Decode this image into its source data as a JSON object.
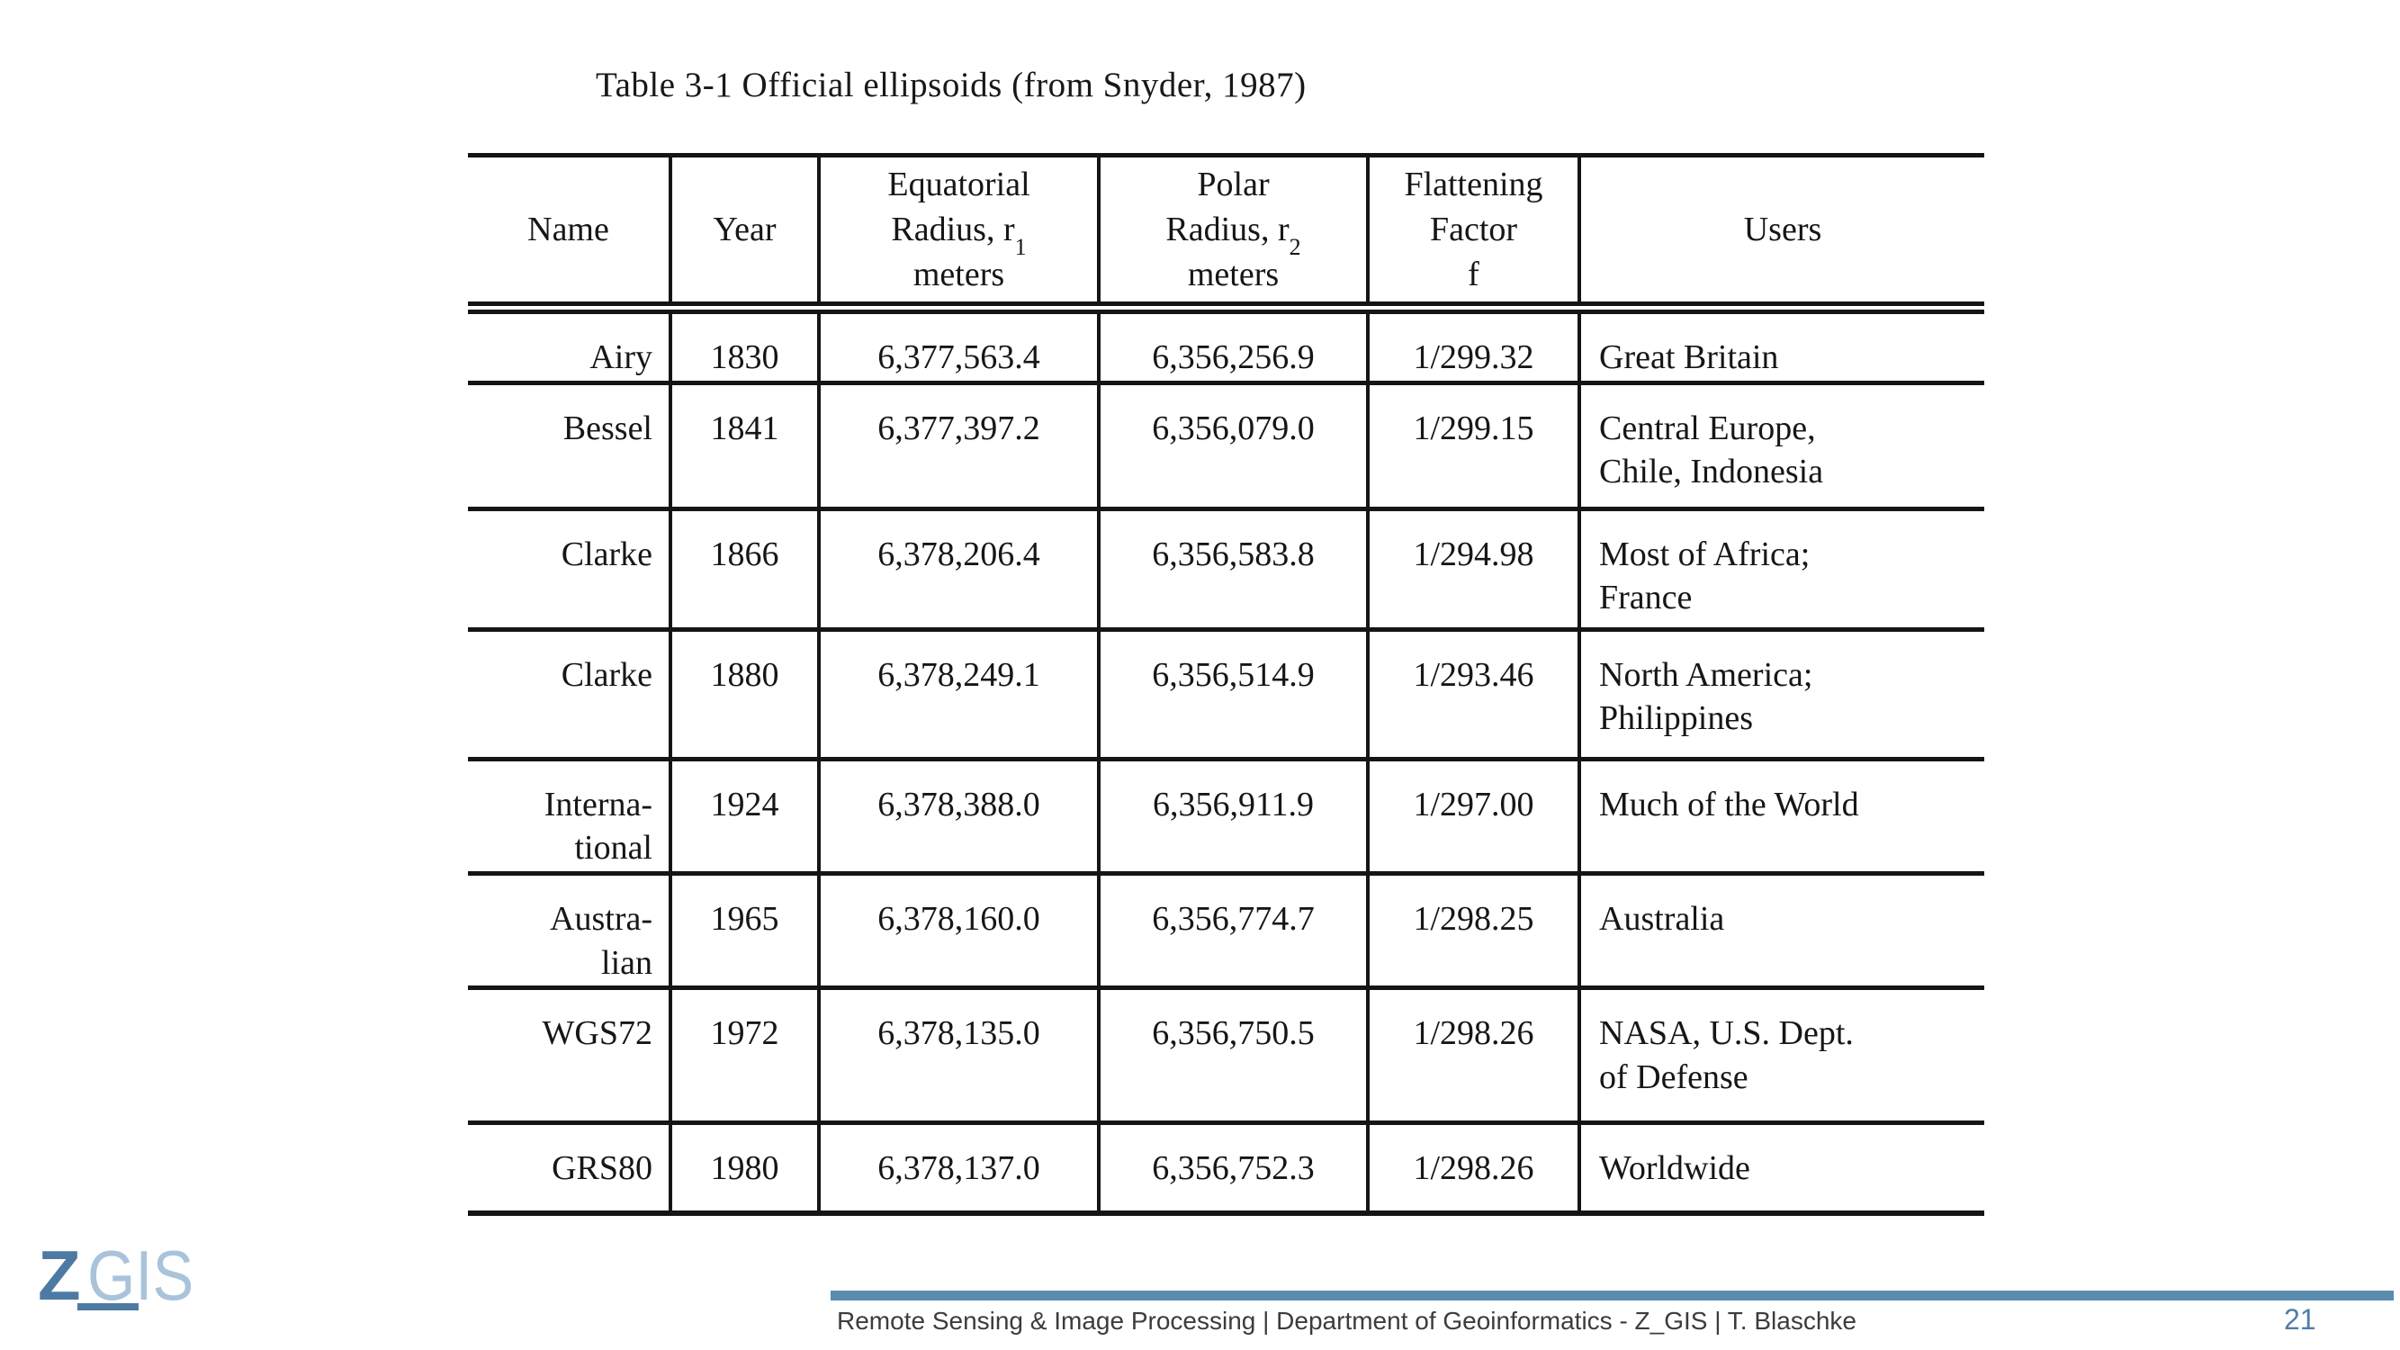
{
  "slide": {
    "title": "Table 3-1 Official ellipsoids (from Snyder, 1987)",
    "page_number": "21"
  },
  "logo": {
    "z": "Z",
    "gis": "GIS"
  },
  "footer": {
    "text": "Remote Sensing & Image Processing | Department of Geoinformatics - Z_GIS | T. Blaschke"
  },
  "colors": {
    "accent_dark": "#4d7aa3",
    "accent_light": "#a9c3da",
    "footer_bar": "#5a8cae",
    "page_number": "#4d7ea9",
    "footer_text": "#3c3c3c",
    "table_ink": "#151515"
  },
  "table": {
    "headers": {
      "name": "Name",
      "year": "Year",
      "equatorial": {
        "l1": "Equatorial",
        "l2": "Radius, r",
        "sub": "1",
        "l3": "meters"
      },
      "polar": {
        "l1": "Polar",
        "l2": "Radius, r",
        "sub": "2",
        "l3": "meters"
      },
      "flattening": {
        "l1": "Flattening",
        "l2": "Factor",
        "l3": "f"
      },
      "users": "Users"
    },
    "rows": [
      {
        "name": "Airy",
        "year": "1830",
        "equatorial": "6,377,563.4",
        "polar": "6,356,256.9",
        "flattening": "1/299.32",
        "users": "Great Britain"
      },
      {
        "name": "Bessel",
        "year": "1841",
        "equatorial": "6,377,397.2",
        "polar": "6,356,079.0",
        "flattening": "1/299.15",
        "users": "Central Europe,\nChile,  Indonesia"
      },
      {
        "name": "Clarke",
        "year": "1866",
        "equatorial": "6,378,206.4",
        "polar": "6,356,583.8",
        "flattening": "1/294.98",
        "users": "Most of Africa;\nFrance"
      },
      {
        "name": "Clarke",
        "year": "1880",
        "equatorial": "6,378,249.1",
        "polar": "6,356,514.9",
        "flattening": "1/293.46",
        "users": "North America;\nPhilippines"
      },
      {
        "name": "Interna-\ntional",
        "year": "1924",
        "equatorial": "6,378,388.0",
        "polar": "6,356,911.9",
        "flattening": "1/297.00",
        "users": "Much of the World"
      },
      {
        "name": "Austra-\nlian",
        "year": "1965",
        "equatorial": "6,378,160.0",
        "polar": "6,356,774.7",
        "flattening": "1/298.25",
        "users": "Australia"
      },
      {
        "name": "WGS72",
        "year": "1972",
        "equatorial": "6,378,135.0",
        "polar": "6,356,750.5",
        "flattening": "1/298.26",
        "users": "NASA, U.S. Dept.\nof Defense"
      },
      {
        "name": "GRS80",
        "year": "1980",
        "equatorial": "6,378,137.0",
        "polar": "6,356,752.3",
        "flattening": "1/298.26",
        "users": "Worldwide"
      }
    ]
  }
}
